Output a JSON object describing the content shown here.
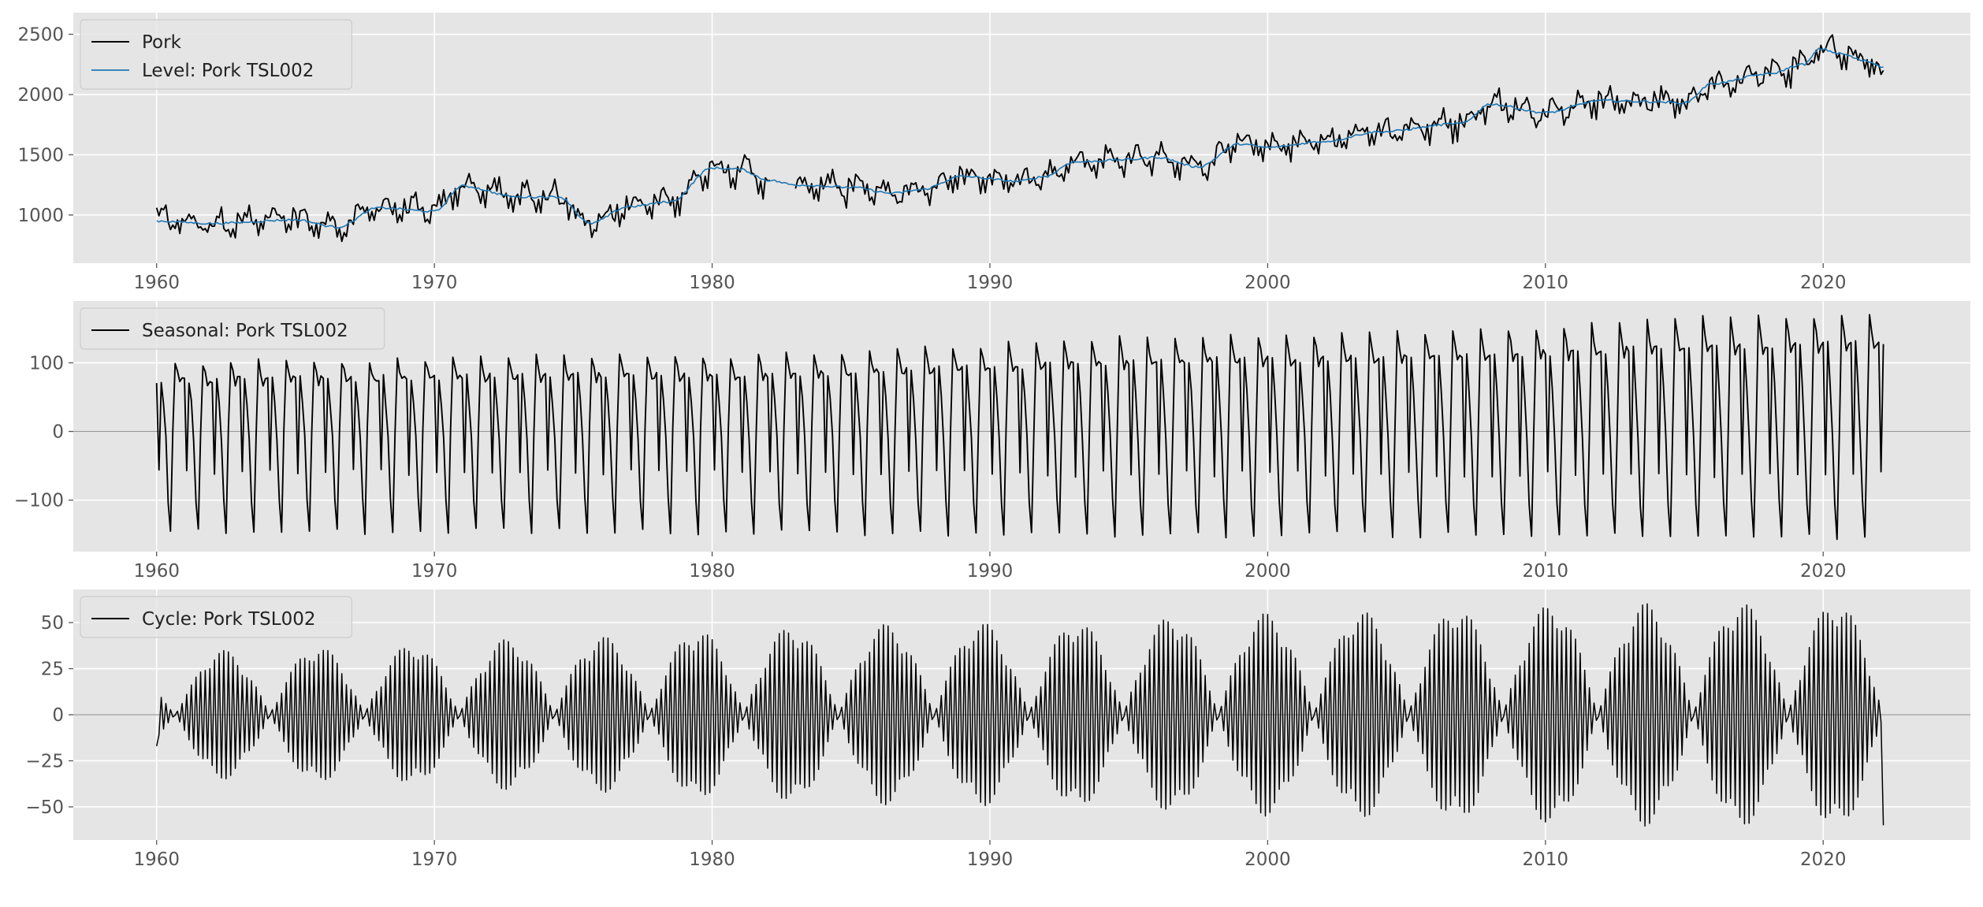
{
  "chart_data": [
    {
      "type": "line",
      "title": "",
      "xlabel": "",
      "ylabel": "",
      "xlim": [
        1957,
        2025.3
      ],
      "ylim": [
        600,
        2680
      ],
      "x_ticks": [
        1960,
        1970,
        1980,
        1990,
        2000,
        2010,
        2020
      ],
      "y_ticks": [
        1000,
        1500,
        2000,
        2500
      ],
      "grid": true,
      "zero_line": false,
      "legend_position": "top-left",
      "series": [
        {
          "name": "Pork",
          "color": "#000000",
          "kind": "raw",
          "gaps": [
            [
              1982.1,
              1983.0
            ]
          ],
          "anchors": [
            [
              1960,
              950
            ],
            [
              1962,
              930
            ],
            [
              1965,
              960
            ],
            [
              1966.5,
              900
            ],
            [
              1968,
              1060
            ],
            [
              1970,
              1030
            ],
            [
              1971,
              1240
            ],
            [
              1973,
              1150
            ],
            [
              1974.5,
              1150
            ],
            [
              1975.6,
              930
            ],
            [
              1977,
              1070
            ],
            [
              1978.5,
              1110
            ],
            [
              1980,
              1390
            ],
            [
              1981,
              1380
            ],
            [
              1982,
              1290
            ],
            [
              1983,
              1250
            ],
            [
              1985,
              1230
            ],
            [
              1986.5,
              1180
            ],
            [
              1987.5,
              1210
            ],
            [
              1989,
              1320
            ],
            [
              1991,
              1280
            ],
            [
              1992,
              1320
            ],
            [
              1993,
              1440
            ],
            [
              1995,
              1460
            ],
            [
              1996,
              1480
            ],
            [
              1997.5,
              1400
            ],
            [
              1999,
              1590
            ],
            [
              2000,
              1560
            ],
            [
              2002,
              1610
            ],
            [
              2004,
              1690
            ],
            [
              2007,
              1760
            ],
            [
              2008,
              1920
            ],
            [
              2010,
              1850
            ],
            [
              2012,
              1950
            ],
            [
              2014,
              1940
            ],
            [
              2015,
              1930
            ],
            [
              2016,
              2090
            ],
            [
              2018,
              2170
            ],
            [
              2019.3,
              2250
            ],
            [
              2019.9,
              2380
            ],
            [
              2020.6,
              2340
            ],
            [
              2021.5,
              2280
            ],
            [
              2022.2,
              2230
            ]
          ],
          "monthly_pattern": [
            20,
            -10,
            80,
            60,
            90,
            10,
            -30,
            0,
            -100,
            -20,
            -110,
            40
          ],
          "noise_amplitude": 55,
          "first_value": 1060,
          "last_value": 2200
        },
        {
          "name": "Level: Pork TSL002",
          "color": "#1f77b4",
          "kind": "smooth",
          "anchors": [
            [
              1960,
              950
            ],
            [
              1962,
              930
            ],
            [
              1965,
              960
            ],
            [
              1966.5,
              900
            ],
            [
              1968,
              1060
            ],
            [
              1970,
              1030
            ],
            [
              1971,
              1240
            ],
            [
              1973,
              1150
            ],
            [
              1974.5,
              1150
            ],
            [
              1975.6,
              930
            ],
            [
              1977,
              1070
            ],
            [
              1978.5,
              1110
            ],
            [
              1980,
              1390
            ],
            [
              1981,
              1380
            ],
            [
              1982,
              1290
            ],
            [
              1983,
              1250
            ],
            [
              1985,
              1230
            ],
            [
              1986.5,
              1180
            ],
            [
              1987.5,
              1210
            ],
            [
              1989,
              1320
            ],
            [
              1991,
              1280
            ],
            [
              1992,
              1320
            ],
            [
              1993,
              1440
            ],
            [
              1995,
              1460
            ],
            [
              1996,
              1480
            ],
            [
              1997.5,
              1400
            ],
            [
              1999,
              1590
            ],
            [
              2000,
              1560
            ],
            [
              2002,
              1610
            ],
            [
              2004,
              1690
            ],
            [
              2007,
              1760
            ],
            [
              2008,
              1920
            ],
            [
              2010,
              1850
            ],
            [
              2012,
              1950
            ],
            [
              2014,
              1940
            ],
            [
              2015,
              1930
            ],
            [
              2016,
              2090
            ],
            [
              2018,
              2170
            ],
            [
              2019.3,
              2250
            ],
            [
              2019.9,
              2380
            ],
            [
              2020.6,
              2340
            ],
            [
              2021.5,
              2280
            ],
            [
              2022.2,
              2230
            ]
          ]
        }
      ]
    },
    {
      "type": "line",
      "title": "",
      "xlabel": "",
      "ylabel": "",
      "xlim": [
        1957,
        2025.3
      ],
      "ylim": [
        -175,
        190
      ],
      "x_ticks": [
        1960,
        1970,
        1980,
        1990,
        2000,
        2010,
        2020
      ],
      "y_ticks": [
        -100,
        0,
        100
      ],
      "grid": true,
      "zero_line": true,
      "legend_position": "top-left",
      "series": [
        {
          "name": "Seasonal: Pork TSL002",
          "color": "#000000",
          "kind": "seasonal",
          "monthly_pattern": [
            75,
            -60,
            75,
            40,
            -10,
            -100,
            -145,
            0,
            100,
            85,
            70,
            75
          ],
          "amplitude_growth": [
            [
              1960,
              1.0
            ],
            [
              1980,
              1.1
            ],
            [
              2000,
              1.4
            ],
            [
              2022.2,
              1.7
            ]
          ],
          "negative_growth": [
            [
              1960,
              1.0
            ],
            [
              2022.2,
              1.05
            ]
          ]
        }
      ]
    },
    {
      "type": "line",
      "title": "",
      "xlabel": "",
      "ylabel": "",
      "xlim": [
        1957,
        2025.3
      ],
      "ylim": [
        -68,
        68
      ],
      "x_ticks": [
        1960,
        1970,
        1980,
        1990,
        2000,
        2010,
        2020
      ],
      "y_ticks": [
        -50,
        -25,
        0,
        25,
        50
      ],
      "grid": true,
      "zero_line": true,
      "legend_position": "top-left",
      "series": [
        {
          "name": "Cycle: Pork TSL002",
          "color": "#000000",
          "kind": "cycle",
          "period_months": 2.05,
          "amplitude": [
            [
              1960,
              22
            ],
            [
              1962,
              35
            ],
            [
              1968,
              38
            ],
            [
              1975,
              42
            ],
            [
              1982,
              48
            ],
            [
              1990,
              50
            ],
            [
              2000,
              55
            ],
            [
              2010,
              60
            ],
            [
              2022.2,
              62
            ]
          ],
          "modulation": 0.25,
          "start_value": -17,
          "end_value": -60
        }
      ]
    }
  ]
}
